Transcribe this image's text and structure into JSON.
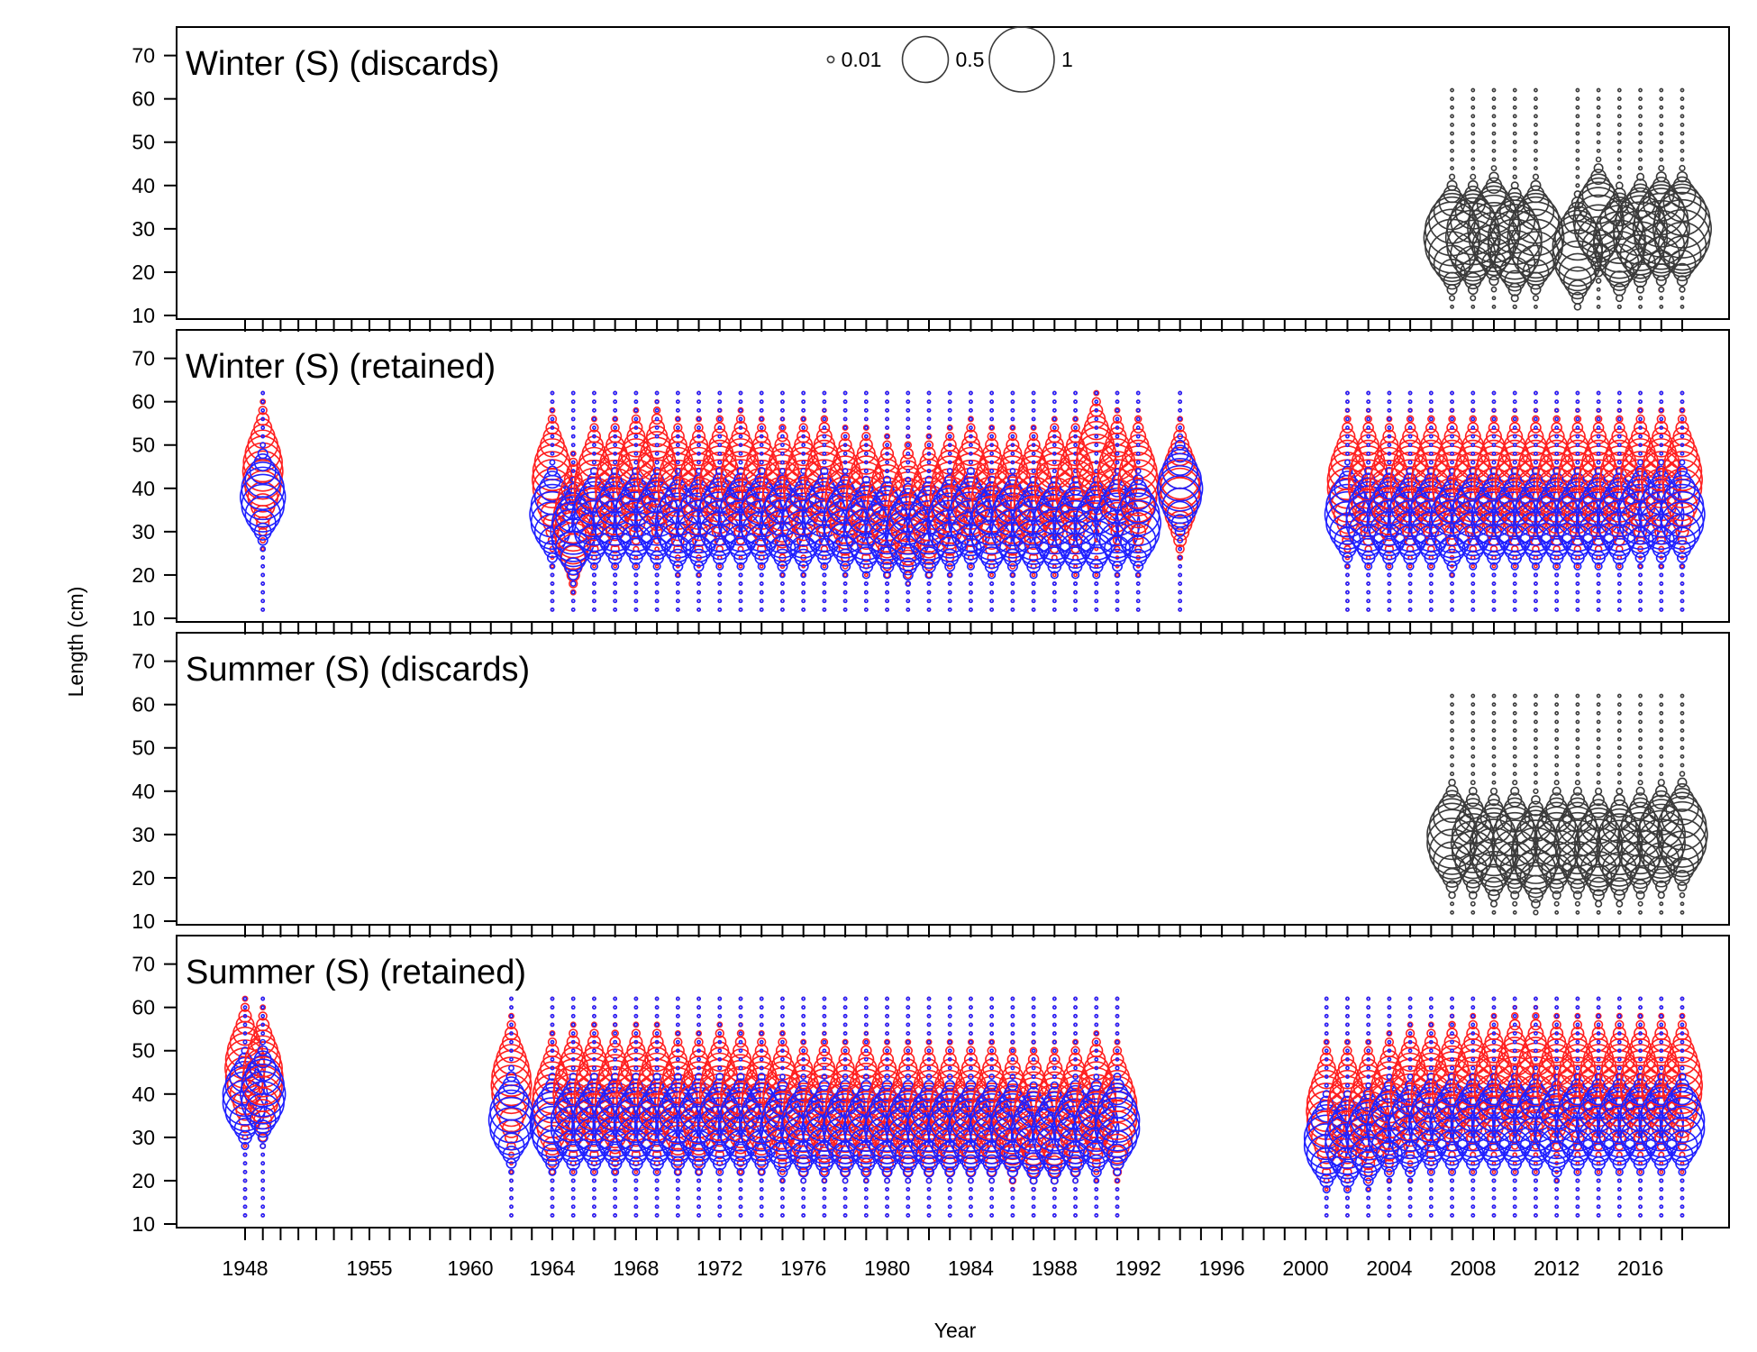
{
  "chart_data": {
    "type": "scatter",
    "subtype": "bubble",
    "xlabel": "Year",
    "ylabel": "Length (cm)",
    "ylim": [
      10,
      72
    ],
    "yticks": [
      10,
      20,
      30,
      40,
      50,
      60,
      70
    ],
    "xticks": [
      1948,
      1955,
      1960,
      1964,
      1968,
      1972,
      1976,
      1980,
      1984,
      1988,
      1992,
      1996,
      2000,
      2004,
      2008,
      2012,
      2016
    ],
    "length_bins": [
      12,
      14,
      16,
      18,
      20,
      22,
      24,
      26,
      28,
      30,
      32,
      34,
      36,
      38,
      40,
      42,
      44,
      46,
      48,
      50,
      52,
      54,
      56,
      58,
      60,
      62
    ],
    "legend": {
      "placement": "top-center",
      "sizes": [
        0.01,
        0.5,
        1
      ],
      "labels": [
        "0.01",
        "0.5",
        "1"
      ]
    },
    "colors": {
      "discards": "#3a3a3a",
      "obs_red": "#ff2020",
      "obs_blue": "#2020ff"
    },
    "panels": [
      {
        "title": "Winter (S) (discards)",
        "kind": "discards",
        "years": [
          2007,
          2008,
          2009,
          2010,
          2011,
          2013,
          2014,
          2015,
          2016,
          2017,
          2018
        ],
        "modes": [
          28,
          28,
          30,
          27,
          28,
          25,
          32,
          27,
          29,
          30,
          30
        ],
        "peaks": [
          0.75,
          0.7,
          0.65,
          0.7,
          0.75,
          0.6,
          0.6,
          0.65,
          0.7,
          0.75,
          0.8
        ]
      },
      {
        "title": "Winter (S) (retained)",
        "kind": "retained",
        "years": [
          1949,
          1964,
          1965,
          1966,
          1967,
          1968,
          1969,
          1970,
          1971,
          1972,
          1973,
          1974,
          1975,
          1976,
          1977,
          1978,
          1979,
          1980,
          1981,
          1982,
          1983,
          1984,
          1985,
          1986,
          1987,
          1988,
          1989,
          1990,
          1991,
          1992,
          1994,
          2002,
          2003,
          2004,
          2005,
          2006,
          2007,
          2008,
          2009,
          2010,
          2011,
          2012,
          2013,
          2014,
          2015,
          2016,
          2017,
          2018
        ],
        "red_modes": [
          44,
          42,
          32,
          40,
          40,
          42,
          43,
          40,
          40,
          41,
          42,
          40,
          39,
          40,
          41,
          38,
          38,
          36,
          35,
          36,
          38,
          40,
          38,
          38,
          38,
          40,
          40,
          46,
          42,
          41,
          40,
          41,
          41,
          40,
          41,
          41,
          41,
          41,
          41,
          41,
          41,
          41,
          41,
          41,
          41,
          42,
          42,
          42
        ],
        "blue_modes": [
          38,
          34,
          30,
          33,
          33,
          33,
          33,
          32,
          32,
          33,
          33,
          33,
          32,
          32,
          33,
          32,
          31,
          31,
          30,
          31,
          32,
          33,
          31,
          32,
          31,
          31,
          31,
          31,
          32,
          32,
          40,
          34,
          33,
          33,
          33,
          33,
          32,
          33,
          33,
          33,
          33,
          33,
          33,
          33,
          33,
          34,
          34,
          34
        ]
      },
      {
        "title": "Summer (S) (discards)",
        "kind": "discards",
        "years": [
          2007,
          2008,
          2009,
          2010,
          2011,
          2012,
          2013,
          2014,
          2015,
          2016,
          2017,
          2018
        ],
        "modes": [
          29,
          28,
          27,
          28,
          26,
          28,
          28,
          27,
          27,
          28,
          29,
          30
        ],
        "peaks": [
          0.6,
          0.45,
          0.55,
          0.5,
          0.55,
          0.5,
          0.5,
          0.55,
          0.5,
          0.5,
          0.55,
          0.6
        ]
      },
      {
        "title": "Summer (S) (retained)",
        "kind": "retained",
        "years": [
          1948,
          1949,
          1962,
          1964,
          1965,
          1966,
          1967,
          1968,
          1969,
          1970,
          1971,
          1972,
          1973,
          1974,
          1975,
          1976,
          1977,
          1978,
          1979,
          1980,
          1981,
          1982,
          1983,
          1984,
          1985,
          1986,
          1987,
          1988,
          1989,
          1990,
          1991,
          2001,
          2002,
          2003,
          2004,
          2005,
          2006,
          2007,
          2008,
          2009,
          2010,
          2011,
          2012,
          2013,
          2014,
          2015,
          2016,
          2017,
          2018
        ],
        "red_modes": [
          46,
          44,
          42,
          38,
          40,
          40,
          39,
          40,
          40,
          38,
          38,
          40,
          39,
          38,
          38,
          36,
          37,
          36,
          37,
          36,
          36,
          36,
          36,
          36,
          36,
          35,
          35,
          35,
          36,
          38,
          36,
          36,
          36,
          36,
          38,
          40,
          40,
          41,
          42,
          42,
          43,
          43,
          42,
          42,
          42,
          42,
          42,
          42,
          42
        ],
        "blue_modes": [
          39,
          40,
          34,
          33,
          33,
          33,
          33,
          33,
          33,
          33,
          33,
          33,
          33,
          33,
          32,
          32,
          32,
          32,
          32,
          32,
          32,
          32,
          32,
          32,
          32,
          32,
          31,
          31,
          32,
          32,
          33,
          29,
          29,
          30,
          32,
          32,
          33,
          33,
          33,
          33,
          33,
          33,
          32,
          33,
          33,
          33,
          33,
          33,
          33
        ]
      }
    ]
  }
}
